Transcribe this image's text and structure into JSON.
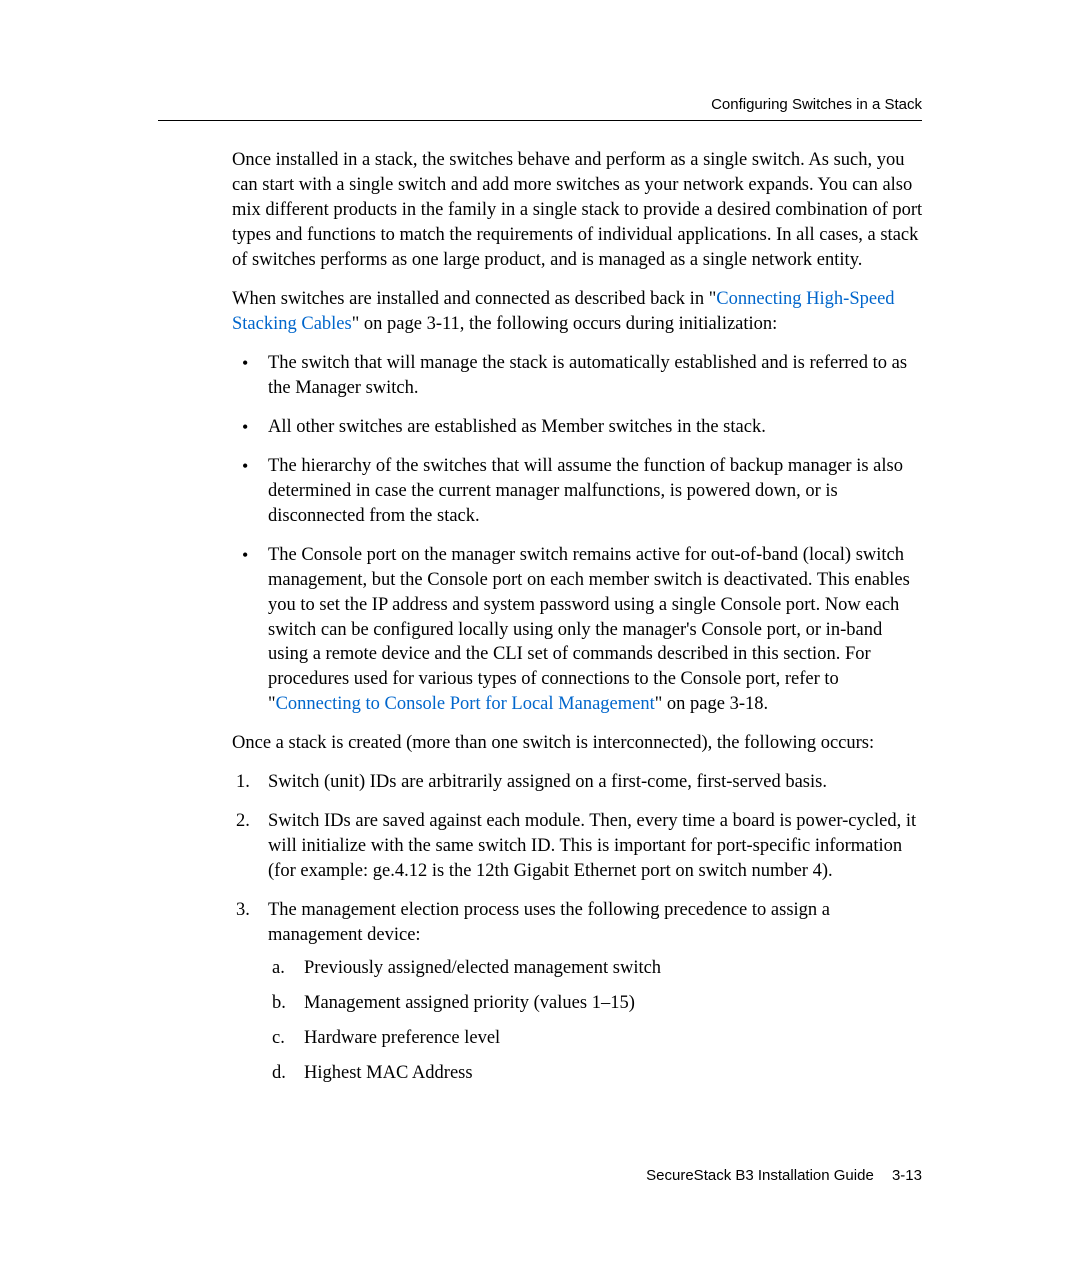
{
  "header": {
    "section_title": "Configuring Switches in a Stack"
  },
  "body": {
    "para1": "Once installed in a stack, the switches behave and perform as a single switch. As such, you can start with a single switch and add more switches as your network expands. You can also mix different products in the family in a single stack to provide a desired combination of port types and functions to match the requirements of individual applications. In all cases, a stack of switches performs as one large product, and is managed as a single network entity.",
    "para2_pre": "When switches are installed and connected as described back in \"",
    "para2_link": "Connecting High-Speed Stacking Cables",
    "para2_post": "\" on page 3-11, the following occurs during initialization:",
    "bullets": {
      "b1": "The switch that will manage the stack is automatically established and is referred to as the Manager switch.",
      "b2": "All other switches are established as Member switches in the stack.",
      "b3": "The hierarchy of the switches that will assume the function of backup manager is also determined in case the current manager malfunctions, is powered down, or is disconnected from the stack.",
      "b4_pre": "The Console port on the manager switch remains active for out-of-band (local) switch management, but the Console port on each member switch is deactivated. This enables you to set the IP address and system password using a single Console port. Now each switch can be configured locally using only the manager's Console port, or in-band using a remote device and the CLI set of commands described in this section. For procedures used for various types of connections to the Console port, refer to \"",
      "b4_link": "Connecting to Console Port for Local Management",
      "b4_post": "\" on page 3-18."
    },
    "para3": "Once a stack is created (more than one switch is interconnected), the following occurs:",
    "numbered": {
      "n1": "Switch (unit) IDs are arbitrarily assigned on a first-come, first-served basis.",
      "n2": "Switch IDs are saved against each module. Then, every time a board is power-cycled, it will initialize with the same switch ID. This is important for port-specific information (for example: ge.4.12 is the 12th Gigabit Ethernet port on switch number 4).",
      "n3_intro": "The management election process uses the following precedence to assign a management device:",
      "lettered": {
        "a": "Previously assigned/elected management switch",
        "b": "Management assigned priority (values 1–15)",
        "c": "Hardware preference level",
        "d": "Highest MAC Address"
      }
    }
  },
  "footer": {
    "doc_title": "SecureStack B3 Installation Guide",
    "page_num": "3-13"
  },
  "colors": {
    "link": "#0066cc",
    "text": "#000000",
    "background": "#ffffff"
  }
}
